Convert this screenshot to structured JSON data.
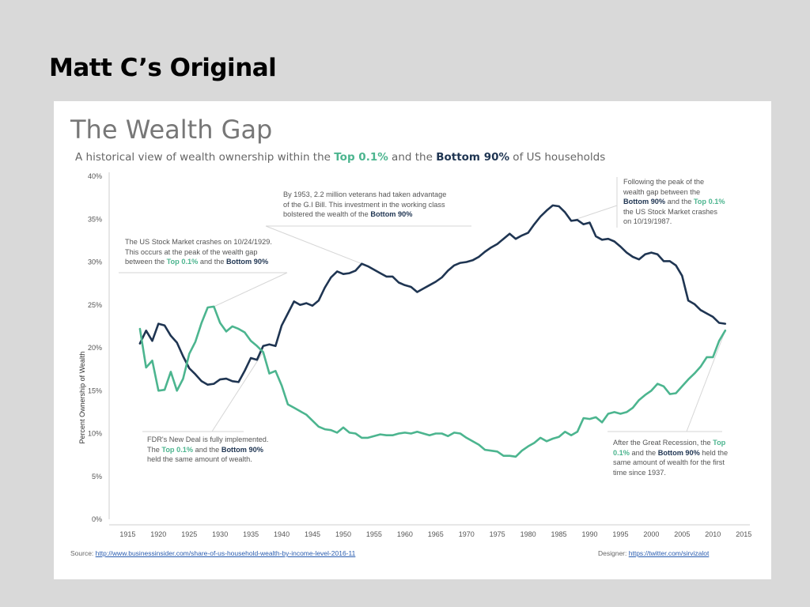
{
  "slide": {
    "title": "Matt C’s Original"
  },
  "chart_data": {
    "type": "line",
    "title": "The Wealth Gap",
    "subtitle": {
      "prefix": "A historical view of wealth ownership within the ",
      "top_label": "Top 0.1%",
      "middle": " and the ",
      "bottom_label": "Bottom 90%",
      "suffix": " of US households"
    },
    "ylabel": "Percent Ownership of Wealth",
    "xlabel": "",
    "xlim": [
      1912,
      2016
    ],
    "ylim": [
      0,
      40
    ],
    "x_ticks": [
      1915,
      1920,
      1925,
      1930,
      1935,
      1940,
      1945,
      1950,
      1955,
      1960,
      1965,
      1970,
      1975,
      1980,
      1985,
      1990,
      1995,
      2000,
      2005,
      2010,
      2015
    ],
    "y_ticks": [
      "0%",
      "5%",
      "10%",
      "15%",
      "20%",
      "25%",
      "30%",
      "35%",
      "40%"
    ],
    "grid": "none",
    "series": [
      {
        "name": "Bottom 90%",
        "color": "#1f3552",
        "x": [
          1917,
          1918,
          1919,
          1920,
          1921,
          1922,
          1923,
          1924,
          1925,
          1926,
          1927,
          1928,
          1929,
          1930,
          1931,
          1932,
          1933,
          1934,
          1935,
          1936,
          1937,
          1938,
          1939,
          1940,
          1941,
          1942,
          1943,
          1944,
          1945,
          1946,
          1947,
          1948,
          1949,
          1950,
          1951,
          1952,
          1953,
          1954,
          1955,
          1956,
          1957,
          1958,
          1959,
          1960,
          1961,
          1962,
          1963,
          1964,
          1965,
          1966,
          1967,
          1968,
          1969,
          1970,
          1971,
          1972,
          1973,
          1974,
          1975,
          1976,
          1977,
          1978,
          1979,
          1980,
          1981,
          1982,
          1983,
          1984,
          1985,
          1986,
          1987,
          1988,
          1989,
          1990,
          1991,
          1992,
          1993,
          1994,
          1995,
          1996,
          1997,
          1998,
          1999,
          2000,
          2001,
          2002,
          2003,
          2004,
          2005,
          2006,
          2007,
          2008,
          2009,
          2010,
          2011,
          2012
        ],
        "values": [
          20.5,
          22.0,
          20.8,
          22.8,
          22.6,
          21.4,
          20.6,
          19.0,
          17.6,
          16.9,
          16.1,
          15.7,
          15.8,
          16.3,
          16.4,
          16.1,
          16.0,
          17.3,
          18.8,
          18.6,
          20.2,
          20.4,
          20.2,
          22.6,
          24.0,
          25.4,
          25.0,
          25.2,
          24.9,
          25.5,
          27.0,
          28.2,
          28.9,
          28.6,
          28.7,
          29.0,
          29.8,
          29.5,
          29.1,
          28.7,
          28.3,
          28.3,
          27.6,
          27.3,
          27.1,
          26.5,
          26.9,
          27.3,
          27.7,
          28.2,
          29.0,
          29.6,
          29.9,
          30.0,
          30.2,
          30.6,
          31.2,
          31.7,
          32.1,
          32.7,
          33.3,
          32.7,
          33.1,
          33.4,
          34.4,
          35.3,
          36.0,
          36.6,
          36.5,
          35.8,
          34.8,
          34.9,
          34.4,
          34.6,
          33.0,
          32.6,
          32.7,
          32.4,
          31.8,
          31.1,
          30.6,
          30.3,
          30.9,
          31.1,
          30.9,
          30.1,
          30.1,
          29.6,
          28.4,
          25.5,
          25.1,
          24.4,
          24.0,
          23.6,
          22.9,
          22.8
        ],
        "label_data": []
      },
      {
        "name": "Top 0.1%",
        "color": "#4cb58f",
        "x": [
          1917,
          1918,
          1919,
          1920,
          1921,
          1922,
          1923,
          1924,
          1925,
          1926,
          1927,
          1928,
          1929,
          1930,
          1931,
          1932,
          1933,
          1934,
          1935,
          1936,
          1937,
          1938,
          1939,
          1940,
          1941,
          1942,
          1943,
          1944,
          1945,
          1946,
          1947,
          1948,
          1949,
          1950,
          1951,
          1952,
          1953,
          1954,
          1955,
          1956,
          1957,
          1958,
          1959,
          1960,
          1961,
          1962,
          1963,
          1964,
          1965,
          1966,
          1967,
          1968,
          1969,
          1970,
          1971,
          1972,
          1973,
          1974,
          1975,
          1976,
          1977,
          1978,
          1979,
          1980,
          1981,
          1982,
          1983,
          1984,
          1985,
          1986,
          1987,
          1988,
          1989,
          1990,
          1991,
          1992,
          1993,
          1994,
          1995,
          1996,
          1997,
          1998,
          1999,
          2000,
          2001,
          2002,
          2003,
          2004,
          2005,
          2006,
          2007,
          2008,
          2009,
          2010,
          2011,
          2012
        ],
        "values": [
          22.2,
          17.7,
          18.5,
          15.0,
          15.1,
          17.2,
          15.0,
          16.4,
          19.3,
          20.7,
          22.9,
          24.7,
          24.8,
          22.9,
          21.9,
          22.5,
          22.2,
          21.8,
          20.8,
          20.2,
          19.5,
          17.0,
          17.3,
          15.6,
          13.4,
          13.0,
          12.6,
          12.2,
          11.5,
          10.8,
          10.5,
          10.4,
          10.1,
          10.7,
          10.1,
          10.0,
          9.5,
          9.5,
          9.7,
          9.9,
          9.8,
          9.8,
          10.0,
          10.1,
          10.0,
          10.2,
          10.0,
          9.8,
          10.0,
          10.0,
          9.7,
          10.1,
          10.0,
          9.5,
          9.1,
          8.7,
          8.1,
          8.0,
          7.9,
          7.4,
          7.4,
          7.3,
          8.0,
          8.5,
          8.9,
          9.5,
          9.1,
          9.4,
          9.6,
          10.2,
          9.8,
          10.2,
          11.8,
          11.7,
          11.9,
          11.3,
          12.3,
          12.5,
          12.3,
          12.5,
          13.0,
          13.9,
          14.5,
          15.0,
          15.8,
          15.5,
          14.6,
          14.7,
          15.5,
          16.3,
          17.0,
          17.8,
          18.9,
          18.9,
          20.8,
          22.0
        ],
        "label_data": []
      }
    ],
    "annotations": [
      {
        "id": "crash-1929",
        "lines": [
          [
            "The US Stock Market crashes on 10/24/1929."
          ],
          [
            "This occurs at the peak of the wealth gap"
          ],
          [
            "between the ",
            {
              "t": "top",
              "v": "Top 0.1%"
            },
            " and the ",
            {
              "t": "bottom",
              "v": "Bottom 90%"
            }
          ]
        ]
      },
      {
        "id": "gi-bill-1953",
        "lines": [
          [
            "By 1953, 2.2 million veterans had taken advantage"
          ],
          [
            "of the G.I Bill.  This investment in the working class"
          ],
          [
            "bolstered the wealth of the ",
            {
              "t": "bottom",
              "v": "Bottom 90%"
            }
          ]
        ]
      },
      {
        "id": "crash-1987",
        "lines": [
          [
            "Following the peak of the"
          ],
          [
            "wealth gap between the"
          ],
          [
            {
              "t": "bottom",
              "v": "Bottom 90%"
            },
            " and the ",
            {
              "t": "top",
              "v": "Top 0.1%"
            }
          ],
          [
            "the US Stock Market crashes"
          ],
          [
            "on 10/19/1987."
          ]
        ]
      },
      {
        "id": "new-deal",
        "lines": [
          [
            "FDR's New Deal is fully implemented."
          ],
          [
            "The ",
            {
              "t": "top",
              "v": "Top 0.1%"
            },
            " and the ",
            {
              "t": "bottom",
              "v": "Bottom 90%"
            }
          ],
          [
            "held the same amount of wealth."
          ]
        ]
      },
      {
        "id": "great-recession",
        "lines": [
          [
            "After the Great Recession, the ",
            {
              "t": "top",
              "v": "Top"
            }
          ],
          [
            {
              "t": "top",
              "v": "0.1%"
            },
            " and the ",
            {
              "t": "bottom",
              "v": "Bottom 90%"
            },
            " held the"
          ],
          [
            "same amount of wealth for the first"
          ],
          [
            "time since 1937."
          ]
        ]
      }
    ],
    "source": {
      "label": "Source: ",
      "link": "http://www.businessinsider.com/share-of-us-household-wealth-by-income-level-2016-11"
    },
    "designer": {
      "label": "Designer: ",
      "link": "https://twitter.com/sirvizalot"
    }
  }
}
